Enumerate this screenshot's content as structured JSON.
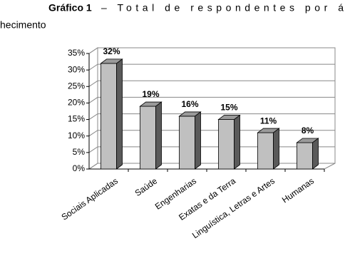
{
  "caption": [
    "Gráfico 1",
    "– Total de respondentes por á",
    "hecimento"
  ],
  "chart_data": {
    "type": "bar3d",
    "categories": [
      "Sociais Aplicadas",
      "Saúde",
      "Engenharias",
      "Exatas e da Terra",
      "Linguística, Letras e Artes",
      "Humanas"
    ],
    "values": [
      32,
      19,
      16,
      15,
      11,
      8
    ],
    "value_labels": [
      "32%",
      "19%",
      "16%",
      "15%",
      "11%",
      "8%"
    ],
    "color": "#c0c0c0",
    "ylim": [
      0,
      35
    ],
    "yticks": [
      {
        "value": 0,
        "label": "0%"
      },
      {
        "value": 5,
        "label": "5%"
      },
      {
        "value": 10,
        "label": "10%"
      },
      {
        "value": 15,
        "label": "15%"
      },
      {
        "value": 20,
        "label": "20%"
      },
      {
        "value": 25,
        "label": "25%"
      },
      {
        "value": 30,
        "label": "30%"
      },
      {
        "value": 35,
        "label": "35%"
      }
    ],
    "grid": true
  }
}
